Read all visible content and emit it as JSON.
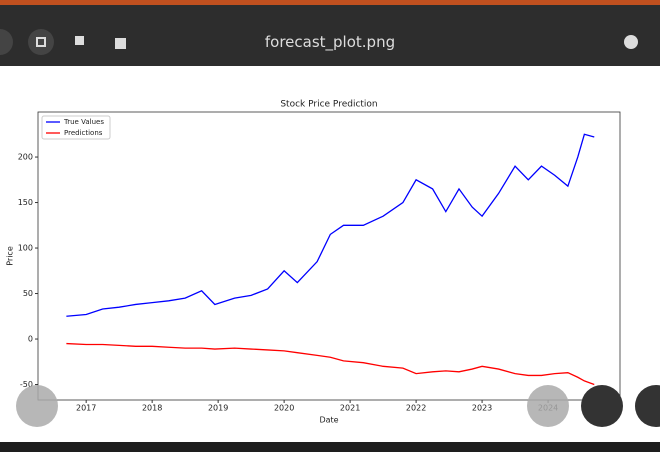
{
  "window": {
    "title": "forecast_plot.png"
  },
  "chart_data": {
    "type": "line",
    "title": "Stock Price Prediction",
    "x_label": "Date",
    "y_label": "Price",
    "x": [
      2016.7,
      2017.0,
      2017.25,
      2017.5,
      2017.75,
      2018.0,
      2018.25,
      2018.5,
      2018.75,
      2018.95,
      2019.25,
      2019.5,
      2019.75,
      2020.0,
      2020.2,
      2020.5,
      2020.7,
      2020.9,
      2021.2,
      2021.5,
      2021.8,
      2022.0,
      2022.25,
      2022.45,
      2022.65,
      2022.85,
      2023.0,
      2023.25,
      2023.5,
      2023.7,
      2023.9,
      2024.1,
      2024.3,
      2024.45,
      2024.55,
      2024.7
    ],
    "series": [
      {
        "name": "True Values",
        "color": "#0000ff",
        "values": [
          25,
          27,
          33,
          35,
          38,
          40,
          42,
          45,
          53,
          38,
          45,
          48,
          55,
          75,
          62,
          85,
          115,
          125,
          125,
          135,
          150,
          175,
          165,
          140,
          165,
          145,
          135,
          160,
          190,
          175,
          190,
          180,
          168,
          200,
          225,
          222
        ]
      },
      {
        "name": "Predictions",
        "color": "#ff0000",
        "values": [
          -5,
          -6,
          -6,
          -7,
          -8,
          -8,
          -9,
          -10,
          -10,
          -11,
          -10,
          -11,
          -12,
          -13,
          -15,
          -18,
          -20,
          -24,
          -26,
          -30,
          -32,
          -38,
          -36,
          -35,
          -36,
          -33,
          -30,
          -33,
          -38,
          -40,
          -40,
          -38,
          -37,
          -42,
          -46,
          -50
        ]
      }
    ],
    "xlim": [
      2016.27,
      2025.09
    ],
    "ylim": [
      -67,
      249.5
    ],
    "xticks": [
      2017,
      2018,
      2019,
      2020,
      2021,
      2022,
      2023,
      2024
    ],
    "yticks": [
      -50,
      0,
      50,
      100,
      150,
      200
    ],
    "legend": "upper left"
  }
}
